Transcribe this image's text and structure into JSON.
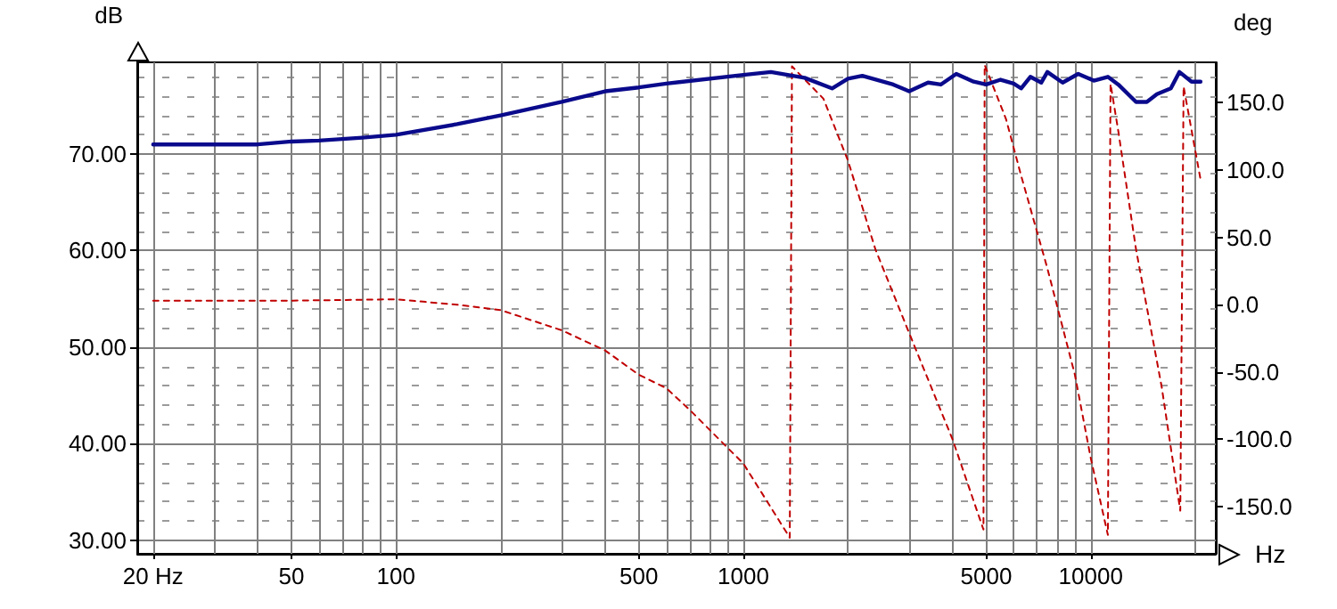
{
  "chart_data": {
    "type": "line",
    "xlabel": "Hz",
    "ylabel": "dB",
    "y2label": "deg",
    "log": "x",
    "grid": true,
    "marker": "none",
    "xlim": [
      18,
      22900
    ],
    "xticks": [
      {
        "value": 20,
        "label": "20 Hz"
      },
      50,
      100,
      500,
      1000,
      5000,
      10000
    ],
    "ylim": [
      28.6,
      79.5
    ],
    "yticks": [
      {
        "value": 30,
        "label": "30.00"
      },
      {
        "value": 40,
        "label": "40.00"
      },
      {
        "value": 50,
        "label": "50.00"
      },
      {
        "value": 60,
        "label": "60.00"
      },
      {
        "value": 70,
        "label": "70.00"
      }
    ],
    "y2lim": [
      -185,
      180
    ],
    "y2ticks": [
      {
        "value": -150,
        "label": "-150.0"
      },
      {
        "value": -100,
        "label": "-100.0"
      },
      {
        "value": -50,
        "label": "-50.0"
      },
      {
        "value": 0,
        "label": "0.0"
      },
      {
        "value": 50,
        "label": "50.0"
      },
      {
        "value": 100,
        "label": "100.0"
      },
      {
        "value": 150,
        "label": "150.0"
      }
    ],
    "series": [
      {
        "color": "#0a0a8c",
        "line_style": "solid",
        "x": [
          20,
          40,
          50,
          60,
          80,
          100,
          150,
          200,
          300,
          400,
          500,
          600,
          1000,
          1200,
          1500,
          1800,
          2000,
          2200,
          2700,
          3000,
          3400,
          3700,
          4100,
          4600,
          5000,
          5500,
          6000,
          6300,
          6700,
          7200,
          7500,
          8300,
          9200,
          10200,
          11200,
          12000,
          13500,
          14500,
          15500,
          17000,
          18000,
          19500,
          20700
        ],
        "values": [
          71.0,
          71.0,
          71.3,
          71.4,
          71.7,
          72.0,
          73.1,
          74.0,
          75.4,
          76.5,
          76.9,
          77.3,
          78.2,
          78.5,
          77.9,
          76.8,
          77.8,
          78.1,
          77.2,
          76.5,
          77.4,
          77.2,
          78.3,
          77.5,
          77.2,
          77.7,
          77.3,
          76.8,
          78.0,
          77.4,
          78.5,
          77.4,
          78.3,
          77.6,
          78.0,
          77.2,
          75.4,
          75.4,
          76.2,
          76.8,
          78.5,
          77.5,
          77.5
        ]
      },
      {
        "color": "#c00000",
        "line_style": "dashed",
        "axis": "y2",
        "x": [
          20,
          50,
          100,
          150,
          200,
          300,
          400,
          500,
          600,
          700,
          1000,
          1360,
          1380,
          1700,
          2000,
          2400,
          3000,
          4000,
          4910,
          4950,
          5700,
          6300,
          7500,
          9000,
          10000,
          11200,
          11400,
          12000,
          13500,
          16000,
          18100,
          18500,
          20700
        ],
        "values": [
          3,
          3,
          4,
          0,
          -4,
          -19,
          -34,
          -52,
          -62,
          -78,
          -118,
          -173,
          177,
          153,
          107,
          41,
          -21,
          -100,
          -167,
          178,
          138,
          96,
          27,
          -52,
          -114,
          -171,
          164,
          129,
          41,
          -61,
          -153,
          162,
          93
        ]
      }
    ]
  }
}
